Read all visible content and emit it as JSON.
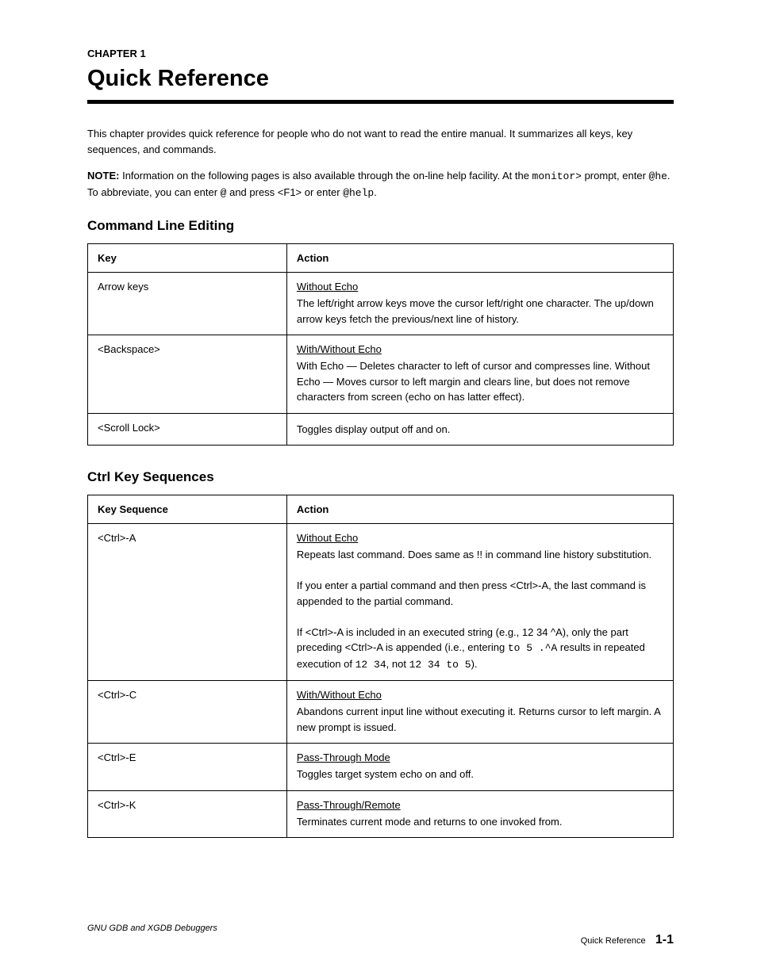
{
  "chapter": {
    "label": "CHAPTER 1",
    "title": "Quick Reference"
  },
  "intro": "This chapter provides quick reference for people who do not want to read the entire manual. It summarizes all keys, key sequences, and commands.",
  "note": {
    "label": "NOTE:",
    "text_before": "Information on the following pages is also available through the on-line help facility. At the ",
    "mono1": "monitor>",
    "text_mid1": " prompt, enter ",
    "mono2": "@he",
    "text_mid2": ". To abbreviate, you can enter ",
    "mono3": "@",
    "text_mid3": " and press <F1> or enter ",
    "mono4": "@help",
    "text_after": "."
  },
  "section1": {
    "title": "Command Line Editing",
    "columns": [
      "Key",
      "Action"
    ],
    "rows": [
      {
        "key": "Arrow keys",
        "subhead": "Without Echo",
        "body": "The left/right arrow keys move the cursor left/right one character. The up/down arrow keys fetch the previous/next line of history."
      },
      {
        "key": "<Backspace>",
        "subhead": "With/Without Echo",
        "body": "With Echo — Deletes character to left of cursor and compresses line. Without Echo — Moves cursor to left margin and clears line, but does not remove characters from screen (echo on has latter effect)."
      },
      {
        "key": "<Scroll Lock>",
        "body": "Toggles display output off and on."
      }
    ]
  },
  "section2": {
    "title": "Ctrl Key Sequences",
    "columns": [
      "Key Sequence",
      "Action"
    ],
    "rows": [
      {
        "key": "<Ctrl>-A",
        "subhead": "Without Echo",
        "body_html": "Repeats last command. Does same as !! in command line history substitution.<br><br>If you enter a partial command and then press &lt;Ctrl&gt;-A, the last command is appended to the partial command.<br><br>If &lt;Ctrl&gt;-A is included in an executed string (e.g., 12 34 ^A), only the part preceding &lt;Ctrl&gt;-A is appended (i.e., entering <span class=\"mono\">to 5 .^A</span> results in repeated execution of <span class=\"mono\">12 34</span>, not <span class=\"mono\">12 34 to 5</span>)."
      },
      {
        "key": "<Ctrl>-C",
        "subhead": "With/Without Echo",
        "body": "Abandons current input line without executing it. Returns cursor to left margin. A new prompt is issued."
      },
      {
        "key": "<Ctrl>-E",
        "subhead": "Pass-Through Mode",
        "body": "Toggles target system echo on and off."
      },
      {
        "key": "<Ctrl>-K",
        "subhead": "Pass-Through/Remote",
        "body": "Terminates current mode and returns to one invoked from."
      }
    ]
  },
  "footer": {
    "title": "GNU GDB and XGDB Debuggers",
    "ref": "Quick Reference",
    "page": "1-1"
  }
}
